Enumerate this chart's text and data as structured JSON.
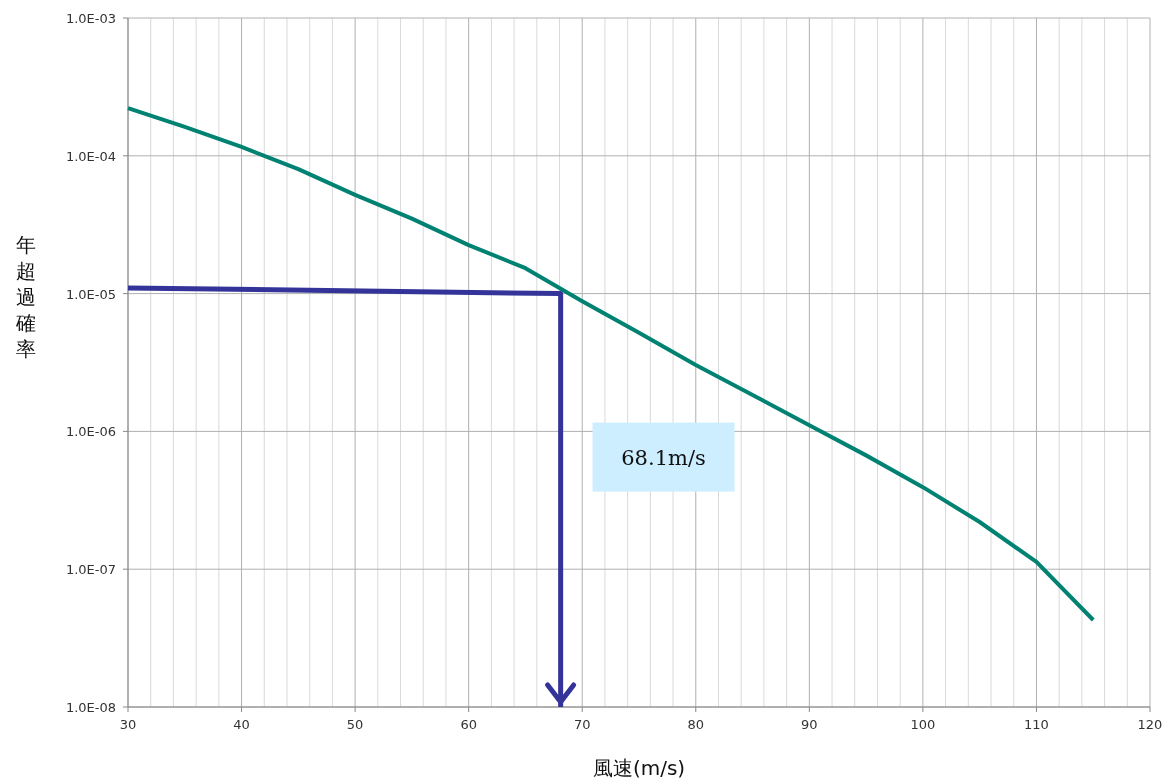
{
  "chart_data": {
    "type": "line",
    "xlabel": "風速(m/s)",
    "ylabel": "年超過確率",
    "log": "y",
    "xlim": [
      30,
      120
    ],
    "xticks": [
      30,
      40,
      50,
      60,
      70,
      80,
      90,
      100,
      110,
      120
    ],
    "ylim": [
      1e-08,
      0.001
    ],
    "yticks": [
      {
        "value": 1e-08,
        "label": "1.0E-08"
      },
      {
        "value": 1e-07,
        "label": "1.0E-07"
      },
      {
        "value": 1e-06,
        "label": "1.0E-06"
      },
      {
        "value": 1e-05,
        "label": "1.0E-05"
      },
      {
        "value": 0.0001,
        "label": "1.0E-04"
      },
      {
        "value": 0.001,
        "label": "1.0E-03"
      }
    ],
    "grid": true,
    "marker": "none",
    "line_style": "solid",
    "series": [
      {
        "color": "#008272",
        "x": [
          30,
          35,
          40,
          45,
          50,
          55,
          60,
          65,
          70,
          75,
          80,
          85,
          90,
          95,
          100,
          105,
          110,
          115
        ],
        "values": [
          0.000222,
          0.000162,
          0.000116,
          8e-05,
          5.2e-05,
          3.5e-05,
          2.25e-05,
          1.53e-05,
          8.8e-06,
          5.2e-06,
          3.03e-06,
          1.84e-06,
          1.11e-06,
          6.7e-07,
          3.94e-07,
          2.2e-07,
          1.13e-07,
          4.28e-08
        ]
      },
      {
        "color": "#333399",
        "x": [
          30,
          68.1,
          68.1
        ],
        "values": [
          1.1e-05,
          1e-05,
          1e-08
        ]
      }
    ],
    "annotations": [
      "68.1m/s"
    ]
  }
}
